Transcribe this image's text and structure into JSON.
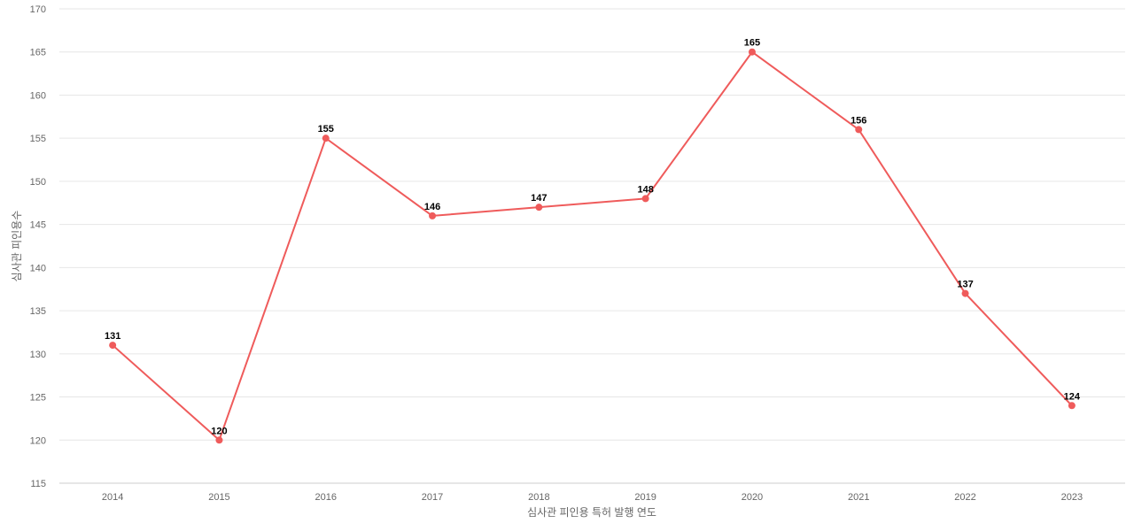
{
  "chart_data": {
    "type": "line",
    "title": "",
    "xlabel": "심사관 피인용 특허 발행 연도",
    "ylabel": "심사관 피인용수",
    "categories": [
      "2014",
      "2015",
      "2016",
      "2017",
      "2018",
      "2019",
      "2020",
      "2021",
      "2022",
      "2023"
    ],
    "series": [
      {
        "values": [
          131,
          120,
          155,
          146,
          147,
          148,
          165,
          156,
          137,
          124
        ],
        "color": "#ef5b5b"
      }
    ],
    "ylim": [
      115,
      170
    ],
    "yticks": [
      115,
      120,
      125,
      130,
      135,
      140,
      145,
      150,
      155,
      160,
      165,
      170
    ],
    "grid": true,
    "data_labels": true,
    "legend": "none"
  }
}
